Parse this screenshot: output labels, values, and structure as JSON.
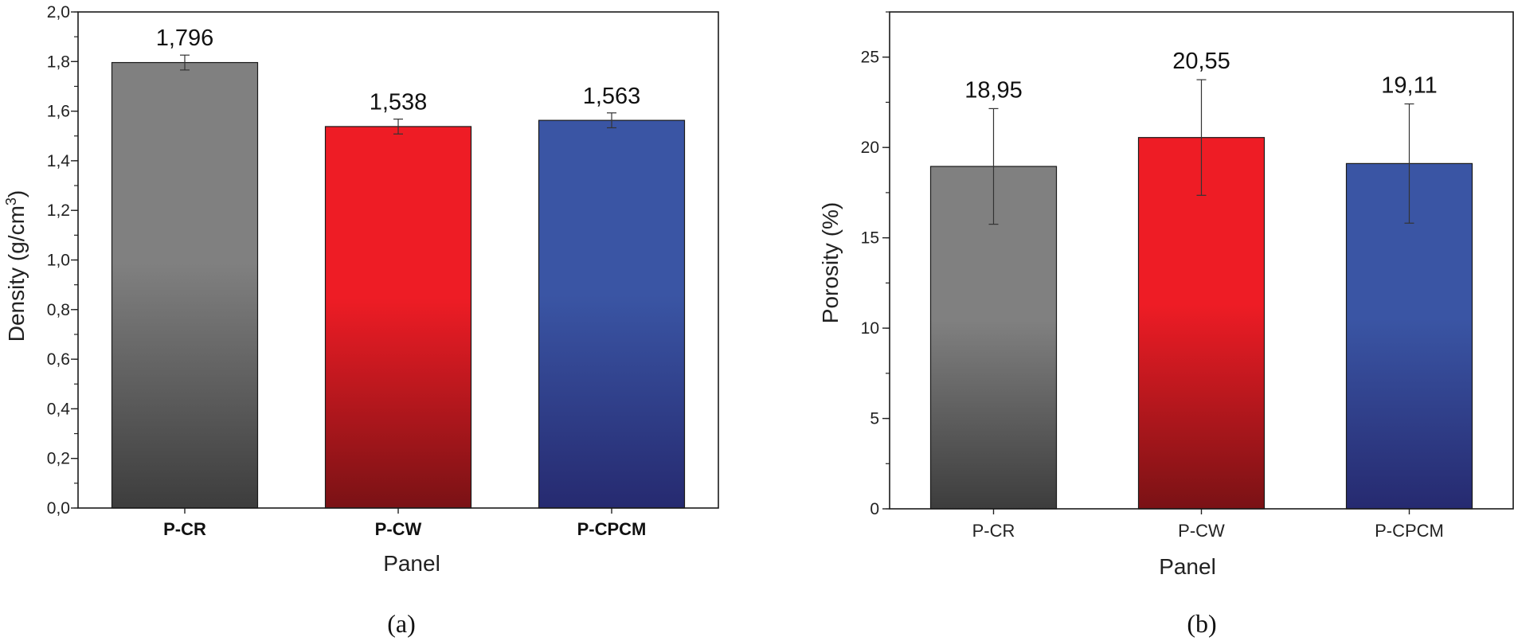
{
  "chart_data": [
    {
      "type": "bar",
      "panel_label": "(a)",
      "categories": [
        "P-CR",
        "P-CW",
        "P-CPCM"
      ],
      "values": [
        1.796,
        1.538,
        1.563
      ],
      "errors": [
        0.03,
        0.03,
        0.03
      ],
      "value_labels": [
        "1,796",
        "1,538",
        "1,563"
      ],
      "colors": [
        "#808080",
        "#ee1c25",
        "#3a55a4"
      ],
      "colors_dark": [
        "#3d3d3d",
        "#7a1215",
        "#262a70"
      ],
      "xlabel": "Panel",
      "ylabel": "Density (g/cm",
      "ylabel_sup": "3",
      "ylabel_close": ")",
      "ylim": [
        0,
        2.0
      ],
      "yticks": [
        0,
        0.2,
        0.4,
        0.6,
        0.8,
        1.0,
        1.2,
        1.4,
        1.6,
        1.8,
        2.0
      ],
      "ytick_labels": [
        "0,0",
        "0,2",
        "0,4",
        "0,6",
        "0,8",
        "1,0",
        "1,2",
        "1,4",
        "1,6",
        "1,8",
        "2,0"
      ],
      "minor_step": 0.1,
      "bold_categories": true
    },
    {
      "type": "bar",
      "panel_label": "(b)",
      "categories": [
        "P-CR",
        "P-CW",
        "P-CPCM"
      ],
      "values": [
        18.95,
        20.55,
        19.11
      ],
      "errors": [
        3.2,
        3.2,
        3.3
      ],
      "value_labels": [
        "18,95",
        "20,55",
        "19,11"
      ],
      "colors": [
        "#808080",
        "#ee1c25",
        "#3a55a4"
      ],
      "colors_dark": [
        "#3d3d3d",
        "#7a1215",
        "#262a70"
      ],
      "xlabel": "Panel",
      "ylabel": "Porosity (%)",
      "ylim": [
        0,
        27.5
      ],
      "yticks": [
        0,
        5,
        10,
        15,
        20,
        25
      ],
      "ytick_labels": [
        "0",
        "5",
        "10",
        "15",
        "20",
        "25"
      ],
      "minor_step": 2.5,
      "bold_categories": false
    }
  ]
}
